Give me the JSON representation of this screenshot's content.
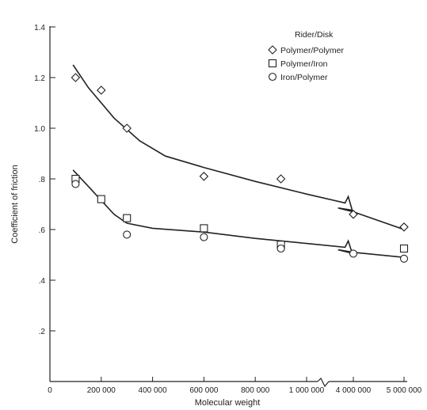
{
  "chart_data": {
    "type": "scatter",
    "xlabel": "Molecular weight",
    "ylabel": "Coefficient of friction",
    "x_tick_labels": [
      "0",
      "200 000",
      "400 000",
      "600 000",
      "800 000",
      "1 000 000",
      "4 000 000",
      "5 000 000"
    ],
    "y_tick_labels": [
      ".2",
      ".4",
      ".6",
      ".8",
      "1.0",
      "1.2",
      "1.4"
    ],
    "ylim": [
      0,
      1.4
    ],
    "x_axis_break": "between 1 000 000 and 4 000 000",
    "legend": {
      "title": "Rider/Disk",
      "position": "top-right",
      "entries": [
        {
          "label": "Polymer/Polymer",
          "marker": "diamond"
        },
        {
          "label": "Polymer/Iron",
          "marker": "square"
        },
        {
          "label": "Iron/Polymer",
          "marker": "circle"
        }
      ]
    },
    "series": [
      {
        "name": "Polymer/Polymer",
        "marker": "diamond",
        "points": [
          [
            100000,
            1.2
          ],
          [
            200000,
            1.15
          ],
          [
            300000,
            1.0
          ],
          [
            600000,
            0.81
          ],
          [
            900000,
            0.8
          ],
          [
            4000000,
            0.66
          ],
          [
            5000000,
            0.61
          ]
        ]
      },
      {
        "name": "Polymer/Iron",
        "marker": "square",
        "points": [
          [
            100000,
            0.8
          ],
          [
            200000,
            0.72
          ],
          [
            300000,
            0.645
          ],
          [
            600000,
            0.605
          ],
          [
            900000,
            0.54
          ],
          [
            5000000,
            0.525
          ]
        ]
      },
      {
        "name": "Iron/Polymer",
        "marker": "circle",
        "points": [
          [
            100000,
            0.78
          ],
          [
            300000,
            0.58
          ],
          [
            600000,
            0.57
          ],
          [
            900000,
            0.525
          ],
          [
            4000000,
            0.505
          ],
          [
            5000000,
            0.485
          ]
        ]
      }
    ],
    "fit_curves": [
      {
        "points": [
          [
            90000,
            1.25
          ],
          [
            150000,
            1.16
          ],
          [
            250000,
            1.04
          ],
          [
            350000,
            0.95
          ],
          [
            450000,
            0.89
          ],
          [
            600000,
            0.845
          ],
          [
            800000,
            0.79
          ],
          [
            1000000,
            0.74
          ],
          [
            1150000,
            0.705
          ],
          [
            3700000,
            0.685
          ],
          [
            4000000,
            0.67
          ],
          [
            5000000,
            0.6
          ]
        ]
      },
      {
        "points": [
          [
            90000,
            0.835
          ],
          [
            150000,
            0.77
          ],
          [
            200000,
            0.715
          ],
          [
            250000,
            0.66
          ],
          [
            300000,
            0.625
          ],
          [
            400000,
            0.605
          ],
          [
            600000,
            0.59
          ],
          [
            800000,
            0.565
          ],
          [
            1000000,
            0.545
          ],
          [
            1150000,
            0.53
          ],
          [
            3700000,
            0.52
          ],
          [
            4000000,
            0.51
          ],
          [
            5000000,
            0.49
          ]
        ]
      }
    ]
  }
}
